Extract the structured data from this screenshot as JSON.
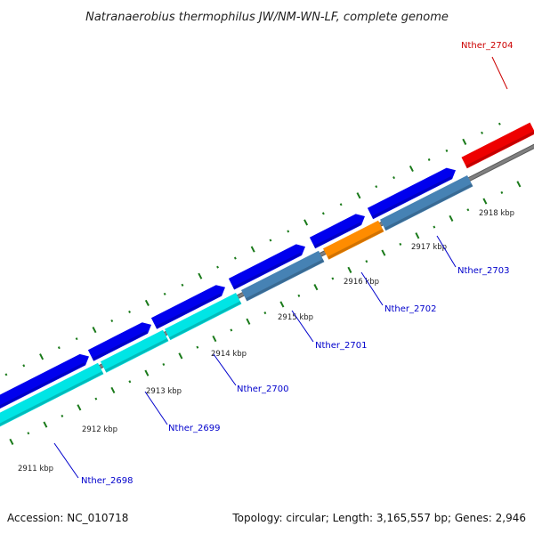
{
  "title": "Natranaerobius thermophilus JW/NM-WN-LF, complete genome",
  "accession_label": "Accession: NC_010718",
  "summary_label": "Topology: circular; Length: 3,165,557 bp; Genes: 2,946",
  "colors": {
    "backbone": "#808080",
    "ticks": "#1a7a1a",
    "gene_forward": "#0000ee",
    "gene_reverse_cds": "#00e5e5",
    "gene_reverse_other": "#4682b4",
    "gene_orange": "#ff8c00",
    "gene_highlight": "#ee0000",
    "label_default": "#0000cc",
    "label_highlight": "#cc0000"
  },
  "scale_labels": [
    "2911 kbp",
    "2912 kbp",
    "2913 kbp",
    "2914 kbp",
    "2915 kbp",
    "2916 kbp",
    "2917 kbp",
    "2918 kbp"
  ],
  "genes": [
    {
      "id": "Nther_2698",
      "label": "Nther_2698",
      "strand": "reverse",
      "color": "gene_reverse_cds"
    },
    {
      "id": "Nther_2699",
      "label": "Nther_2699",
      "strand": "reverse",
      "color": "gene_reverse_cds"
    },
    {
      "id": "Nther_2700",
      "label": "Nther_2700",
      "strand": "reverse",
      "color": "gene_reverse_cds"
    },
    {
      "id": "Nther_2701",
      "label": "Nther_2701",
      "strand": "reverse",
      "color": "gene_reverse_other"
    },
    {
      "id": "Nther_2702",
      "label": "Nther_2702",
      "strand": "reverse",
      "color": "gene_orange"
    },
    {
      "id": "Nther_2703",
      "label": "Nther_2703",
      "strand": "reverse",
      "color": "gene_reverse_other"
    },
    {
      "id": "Nther_2704",
      "label": "Nther_2704",
      "strand": "forward",
      "color": "gene_highlight"
    }
  ]
}
